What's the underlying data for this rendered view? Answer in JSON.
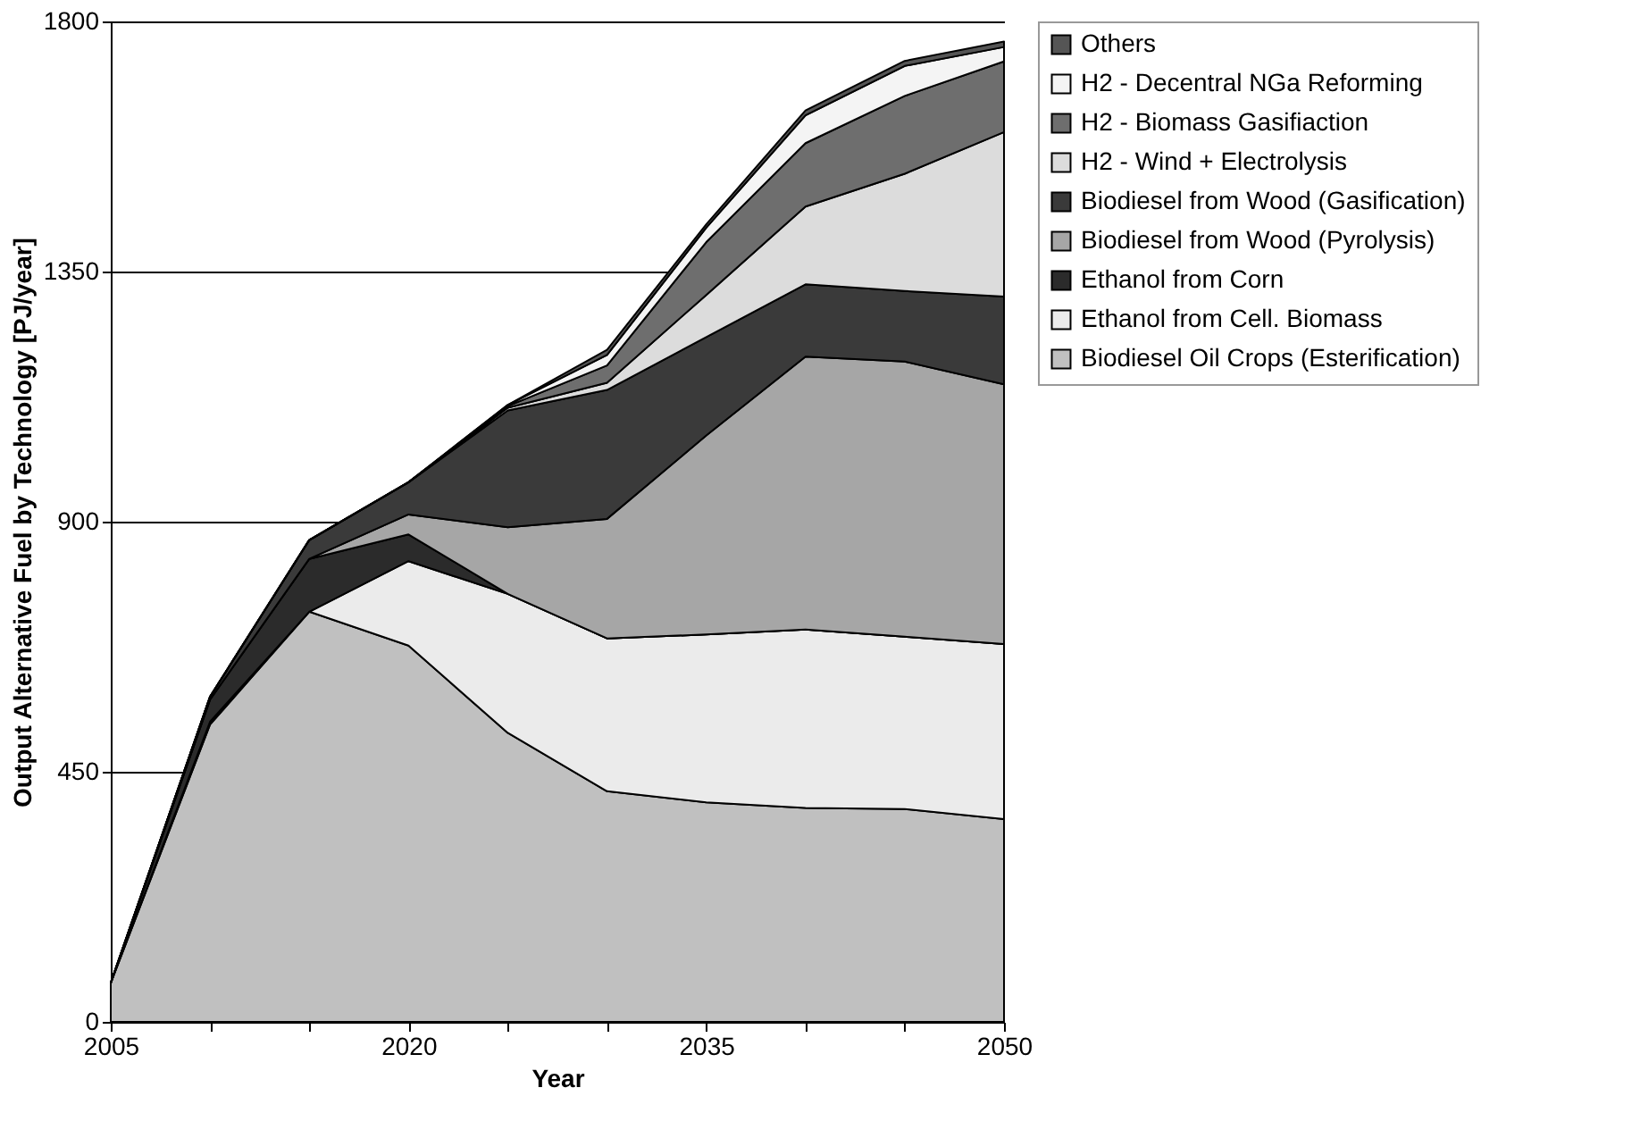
{
  "chart_data": {
    "type": "area",
    "stacked": true,
    "xlabel": "Year",
    "ylabel": "Output Alternative Fuel by Technology [PJ/year]",
    "x": [
      2005,
      2010,
      2015,
      2020,
      2025,
      2030,
      2035,
      2040,
      2045,
      2050
    ],
    "xlim": [
      2005,
      2050
    ],
    "xticks": [
      2005,
      {
        "value": 2010,
        "label": null
      },
      {
        "value": 2015,
        "label": null
      },
      2020,
      {
        "value": 2025,
        "label": null
      },
      {
        "value": 2030,
        "label": null
      },
      2035,
      {
        "value": 2040,
        "label": null
      },
      {
        "value": 2045,
        "label": null
      },
      2050
    ],
    "ylim": [
      0,
      1800
    ],
    "yticks": [
      0,
      450,
      900,
      1350,
      1800
    ],
    "grid": "y",
    "legend": "right",
    "series": [
      {
        "name": "Biodiesel Oil Crops (Esterification)",
        "color": "#c0c0c0",
        "values": [
          70,
          535,
          738,
          677,
          520,
          415,
          395,
          385,
          383,
          365
        ]
      },
      {
        "name": "Ethanol from Cell. Biomass",
        "color": "#ebebeb",
        "values": [
          0,
          5,
          0,
          152,
          250,
          275,
          302,
          321,
          310,
          315
        ]
      },
      {
        "name": "Ethanol from Corn",
        "color": "#2b2b2b",
        "values": [
          0,
          40,
          95,
          48,
          0,
          0,
          0,
          0,
          0,
          0
        ]
      },
      {
        "name": "Biodiesel from Wood (Pyrolysis)",
        "color": "#a6a6a6",
        "values": [
          0,
          0,
          0,
          36,
          120,
          215,
          358,
          491,
          495,
          467
        ]
      },
      {
        "name": "Biodiesel from Wood (Gasification)",
        "color": "#3a3a3a",
        "values": [
          0,
          5,
          34,
          58,
          210,
          232,
          177,
          130,
          127,
          158
        ]
      },
      {
        "name": "H2 - Wind + Electrolysis",
        "color": "#dcdcdc",
        "values": [
          0,
          0,
          0,
          0,
          5,
          13,
          76,
          140,
          211,
          296
        ]
      },
      {
        "name": "H2 - Biomass Gasifiaction",
        "color": "#6e6e6e",
        "values": [
          0,
          0,
          0,
          0,
          3,
          31,
          95,
          114,
          140,
          127
        ]
      },
      {
        "name": "H2 - Decentral NGa Reforming",
        "color": "#f4f4f4",
        "values": [
          0,
          0,
          0,
          0,
          2,
          19,
          26,
          50,
          54,
          26
        ]
      },
      {
        "name": "Others",
        "color": "#555555",
        "values": [
          0,
          0,
          0,
          0,
          0,
          9,
          6,
          9,
          9,
          10
        ]
      }
    ]
  }
}
